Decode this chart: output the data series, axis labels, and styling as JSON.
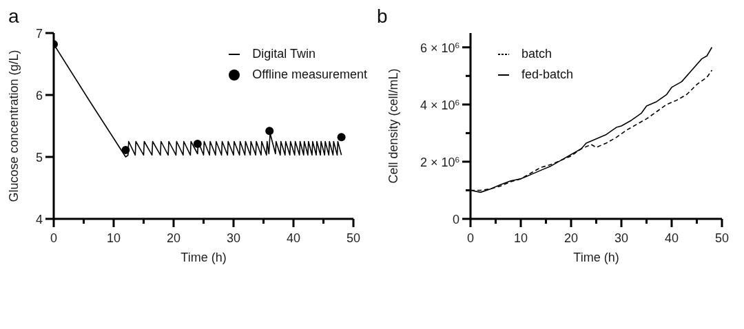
{
  "chart_data": [
    {
      "type": "line",
      "title": "a",
      "xlabel": "Time (h)",
      "ylabel": "Glucose concentration (g/L)",
      "xlim": [
        0,
        50
      ],
      "ylim": [
        4,
        7
      ],
      "xticks": [
        0,
        {
          "value": 5,
          "label": null
        },
        10,
        {
          "value": 15,
          "label": null
        },
        20,
        {
          "value": 25,
          "label": null
        },
        30,
        {
          "value": 35,
          "label": null
        },
        40,
        {
          "value": 45,
          "label": null
        },
        50
      ],
      "yticks": [
        4,
        5,
        6,
        7
      ],
      "legend": "top right",
      "series": [
        {
          "name": "Digital Twin",
          "color": "#000000",
          "marker": "none",
          "line_style": "solid",
          "x": [
            0,
            6,
            12,
            12.4,
            12.5,
            13.6,
            13.7,
            15.0,
            15.1,
            16.4,
            16.5,
            17.8,
            17.9,
            19.1,
            19.2,
            20.4,
            20.5,
            21.6,
            21.7,
            22.8,
            22.9,
            24.0,
            24.1,
            25.0,
            25.1,
            26.0,
            26.1,
            27.0,
            27.1,
            28.0,
            28.1,
            29.0,
            29.1,
            30.0,
            30.1,
            31.0,
            31.1,
            31.9,
            32.0,
            32.8,
            32.9,
            33.7,
            33.8,
            34.6,
            34.7,
            35.5,
            35.6,
            35.9,
            36.1,
            37.0,
            37.1,
            37.8,
            37.9,
            38.6,
            38.7,
            39.4,
            39.5,
            40.2,
            40.3,
            41.0,
            41.1,
            41.7,
            41.8,
            42.4,
            42.5,
            43.1,
            43.2,
            43.8,
            43.9,
            44.5,
            44.6,
            45.2,
            45.3,
            45.9,
            46.0,
            46.6,
            46.7,
            47.3,
            47.4,
            48.0
          ],
          "values": [
            6.82,
            5.9,
            5.0,
            5.03,
            5.25,
            5.03,
            5.25,
            5.03,
            5.25,
            5.03,
            5.25,
            5.03,
            5.25,
            5.03,
            5.25,
            5.03,
            5.25,
            5.03,
            5.25,
            5.03,
            5.25,
            5.05,
            5.25,
            5.03,
            5.25,
            5.03,
            5.25,
            5.03,
            5.25,
            5.03,
            5.25,
            5.03,
            5.25,
            5.03,
            5.25,
            5.03,
            5.25,
            5.03,
            5.25,
            5.03,
            5.25,
            5.03,
            5.25,
            5.03,
            5.25,
            5.03,
            5.25,
            5.05,
            5.38,
            5.05,
            5.25,
            5.03,
            5.25,
            5.03,
            5.25,
            5.03,
            5.25,
            5.03,
            5.25,
            5.03,
            5.25,
            5.03,
            5.25,
            5.03,
            5.25,
            5.03,
            5.25,
            5.03,
            5.25,
            5.03,
            5.25,
            5.03,
            5.25,
            5.03,
            5.25,
            5.03,
            5.25,
            5.03,
            5.25,
            5.03
          ]
        },
        {
          "name": "Offline measurement",
          "type": "scatter",
          "color": "#000000",
          "marker": "circle",
          "x": [
            0,
            12,
            24,
            36,
            48
          ],
          "values": [
            6.82,
            5.11,
            5.21,
            5.42,
            5.32
          ]
        }
      ]
    },
    {
      "type": "line",
      "title": "b",
      "xlabel": "Time (h)",
      "ylabel": "Cell density (cell/mL)",
      "xlim": [
        0,
        50
      ],
      "ylim": [
        0,
        6500000
      ],
      "xticks": [
        0,
        {
          "value": 5,
          "label": null
        },
        10,
        {
          "value": 15,
          "label": null
        },
        20,
        {
          "value": 25,
          "label": null
        },
        30,
        {
          "value": 35,
          "label": null
        },
        40,
        {
          "value": 45,
          "label": null
        },
        50
      ],
      "yticks": [
        0,
        {
          "value": 1000000,
          "label": null
        },
        {
          "value": 2000000,
          "label": "2 × 10$^{6}$"
        },
        {
          "value": 3000000,
          "label": null
        },
        {
          "value": 4000000,
          "label": "4 × 10$^{6}$"
        },
        {
          "value": 5000000,
          "label": null
        },
        {
          "value": 6000000,
          "label": "6 × 10$^{6}$"
        }
      ],
      "legend": "top left",
      "series": [
        {
          "name": "batch",
          "color": "#000000",
          "line_style": "dashed",
          "marker": "none",
          "x": [
            0,
            2,
            4,
            6,
            8,
            10,
            12,
            14,
            16,
            18,
            20,
            22,
            24,
            25,
            27,
            29,
            31,
            33,
            35,
            37,
            39,
            41,
            43,
            45,
            47,
            48
          ],
          "values": [
            1000000,
            1000000,
            1050000,
            1150000,
            1300000,
            1400000,
            1600000,
            1800000,
            1900000,
            2050000,
            2200000,
            2450000,
            2600000,
            2500000,
            2650000,
            2850000,
            3100000,
            3300000,
            3500000,
            3750000,
            4000000,
            4150000,
            4350000,
            4700000,
            4950000,
            5200000
          ]
        },
        {
          "name": "fed-batch",
          "color": "#000000",
          "line_style": "solid",
          "marker": "none",
          "x": [
            0,
            2,
            4,
            6,
            8,
            10,
            12,
            14,
            16,
            18,
            20,
            22,
            23,
            25,
            27,
            29,
            30,
            32,
            34,
            35,
            37,
            39,
            40,
            42,
            44,
            46,
            47,
            48
          ],
          "values": [
            1000000,
            930000,
            1050000,
            1200000,
            1330000,
            1400000,
            1550000,
            1700000,
            1850000,
            2050000,
            2250000,
            2450000,
            2650000,
            2800000,
            2950000,
            3200000,
            3250000,
            3450000,
            3700000,
            3950000,
            4100000,
            4350000,
            4600000,
            4800000,
            5200000,
            5600000,
            5700000,
            6000000
          ]
        }
      ]
    }
  ]
}
